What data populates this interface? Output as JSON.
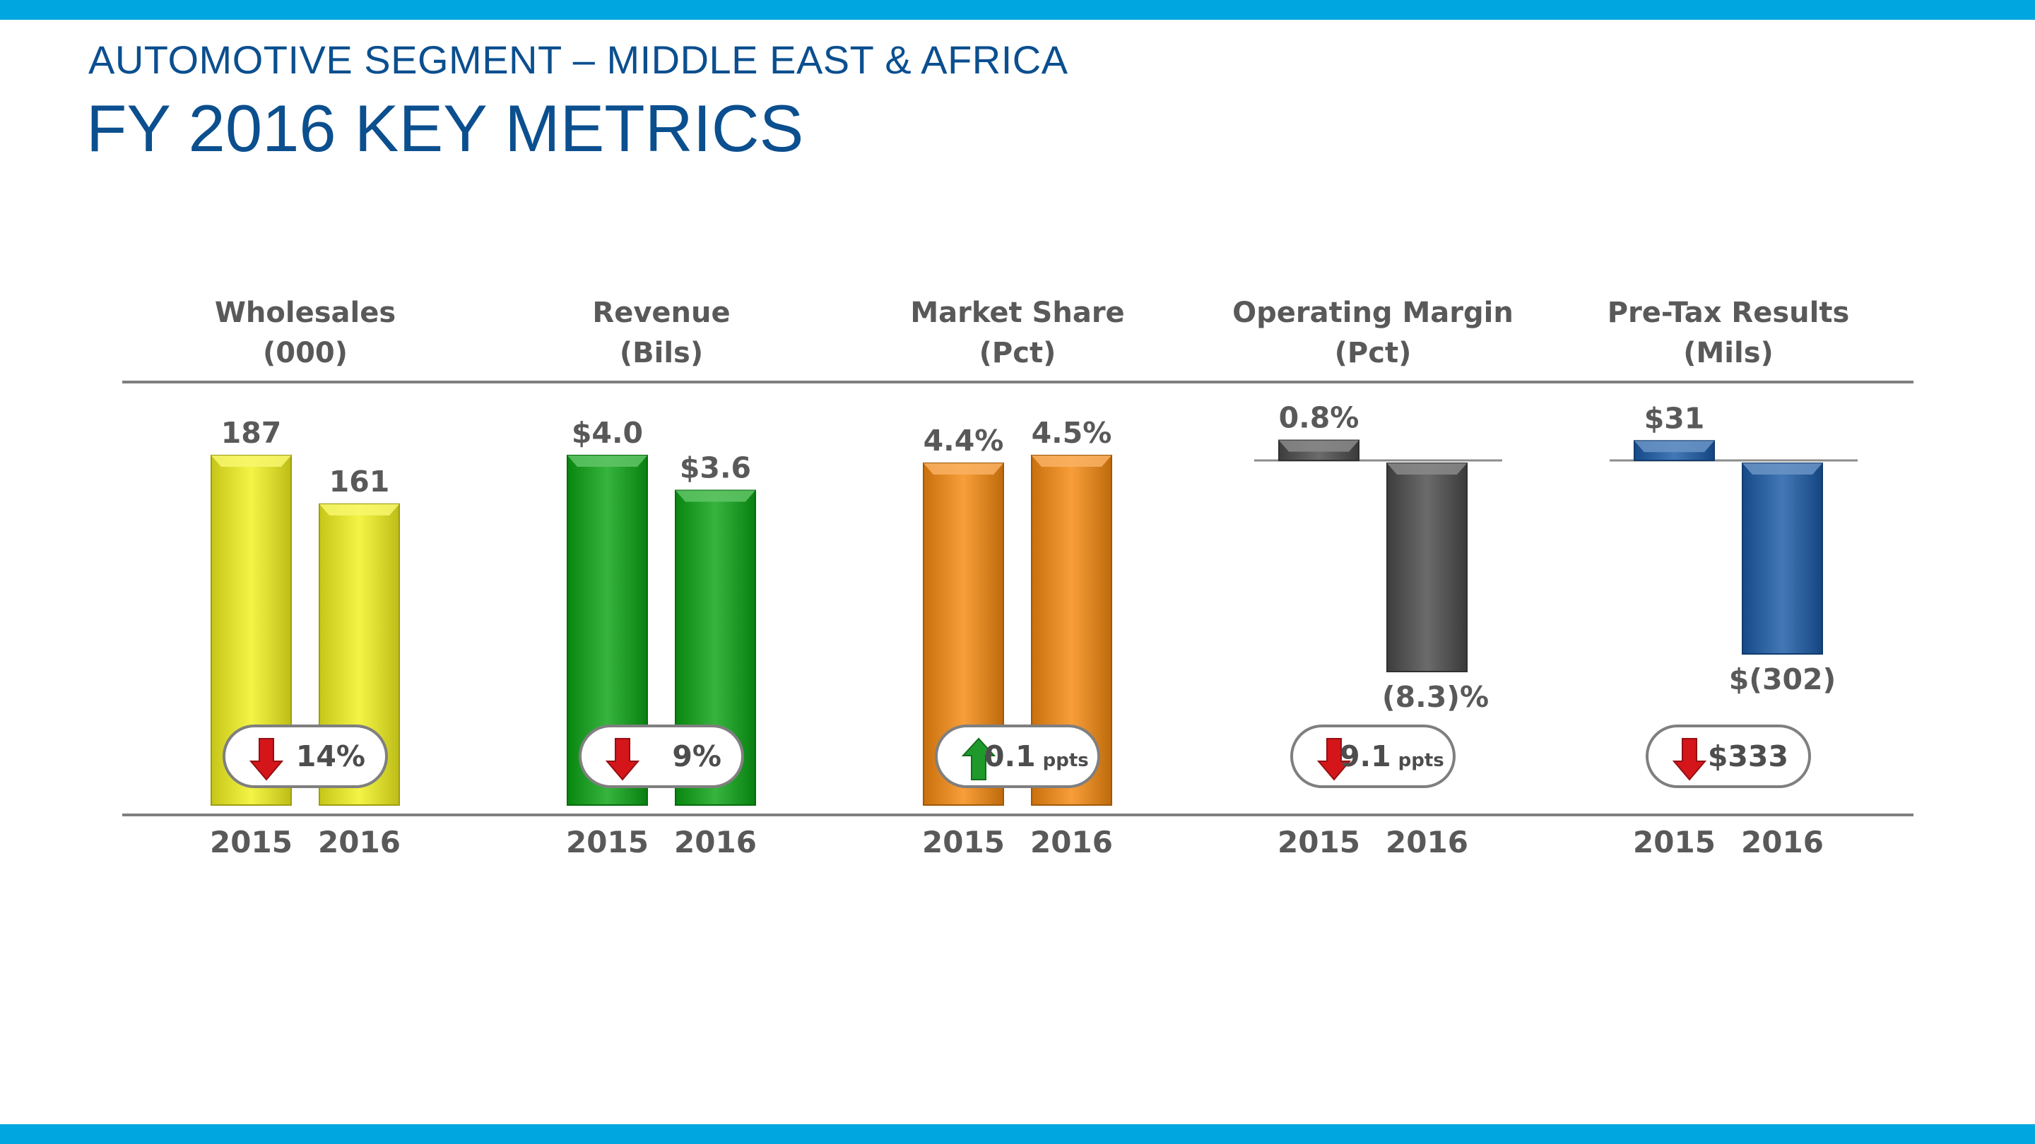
{
  "header": {
    "subtitle": "AUTOMOTIVE SEGMENT – MIDDLE EAST & AFRICA",
    "title": "FY 2016 KEY METRICS"
  },
  "colors": {
    "band": "#00a6e0",
    "title": "#0b4f8f",
    "label": "#595959",
    "up_arrow": "#1f9a2a",
    "down_arrow": "#d4161b"
  },
  "chart_data": [
    {
      "type": "bar",
      "title": "Wholesales",
      "unit_label": "(000)",
      "categories": [
        "2015",
        "2016"
      ],
      "values": [
        187,
        161
      ],
      "value_labels": [
        "187",
        "161"
      ],
      "change": {
        "direction": "down",
        "value": "14%",
        "unit": ""
      },
      "color": "#f2f21e"
    },
    {
      "type": "bar",
      "title": "Revenue",
      "unit_label": "(Bils)",
      "categories": [
        "2015",
        "2016"
      ],
      "values": [
        4.0,
        3.6
      ],
      "value_labels": [
        "$4.0",
        "$3.6"
      ],
      "change": {
        "direction": "down",
        "value": "9%",
        "unit": ""
      },
      "color": "#0aa414"
    },
    {
      "type": "bar",
      "title": "Market Share",
      "unit_label": "(Pct)",
      "categories": [
        "2015",
        "2016"
      ],
      "values": [
        4.4,
        4.5
      ],
      "value_labels": [
        "4.4%",
        "4.5%"
      ],
      "change": {
        "direction": "up",
        "value": "0.1",
        "unit": "ppts"
      },
      "color": "#f5890f"
    },
    {
      "type": "bar",
      "title": "Operating Margin",
      "unit_label": "(Pct)",
      "categories": [
        "2015",
        "2016"
      ],
      "values": [
        0.8,
        -8.3
      ],
      "value_labels": [
        "0.8%",
        "(8.3)%"
      ],
      "change": {
        "direction": "down",
        "value": "9.1",
        "unit": "ppts"
      },
      "color": "#4a4a4a"
    },
    {
      "type": "bar",
      "title": "Pre-Tax Results",
      "unit_label": "(Mils)",
      "categories": [
        "2015",
        "2016"
      ],
      "values": [
        31,
        -302
      ],
      "value_labels": [
        "$31",
        "$(302)"
      ],
      "change": {
        "direction": "down",
        "value": "$333",
        "unit": ""
      },
      "color": "#1a5aa6"
    }
  ]
}
